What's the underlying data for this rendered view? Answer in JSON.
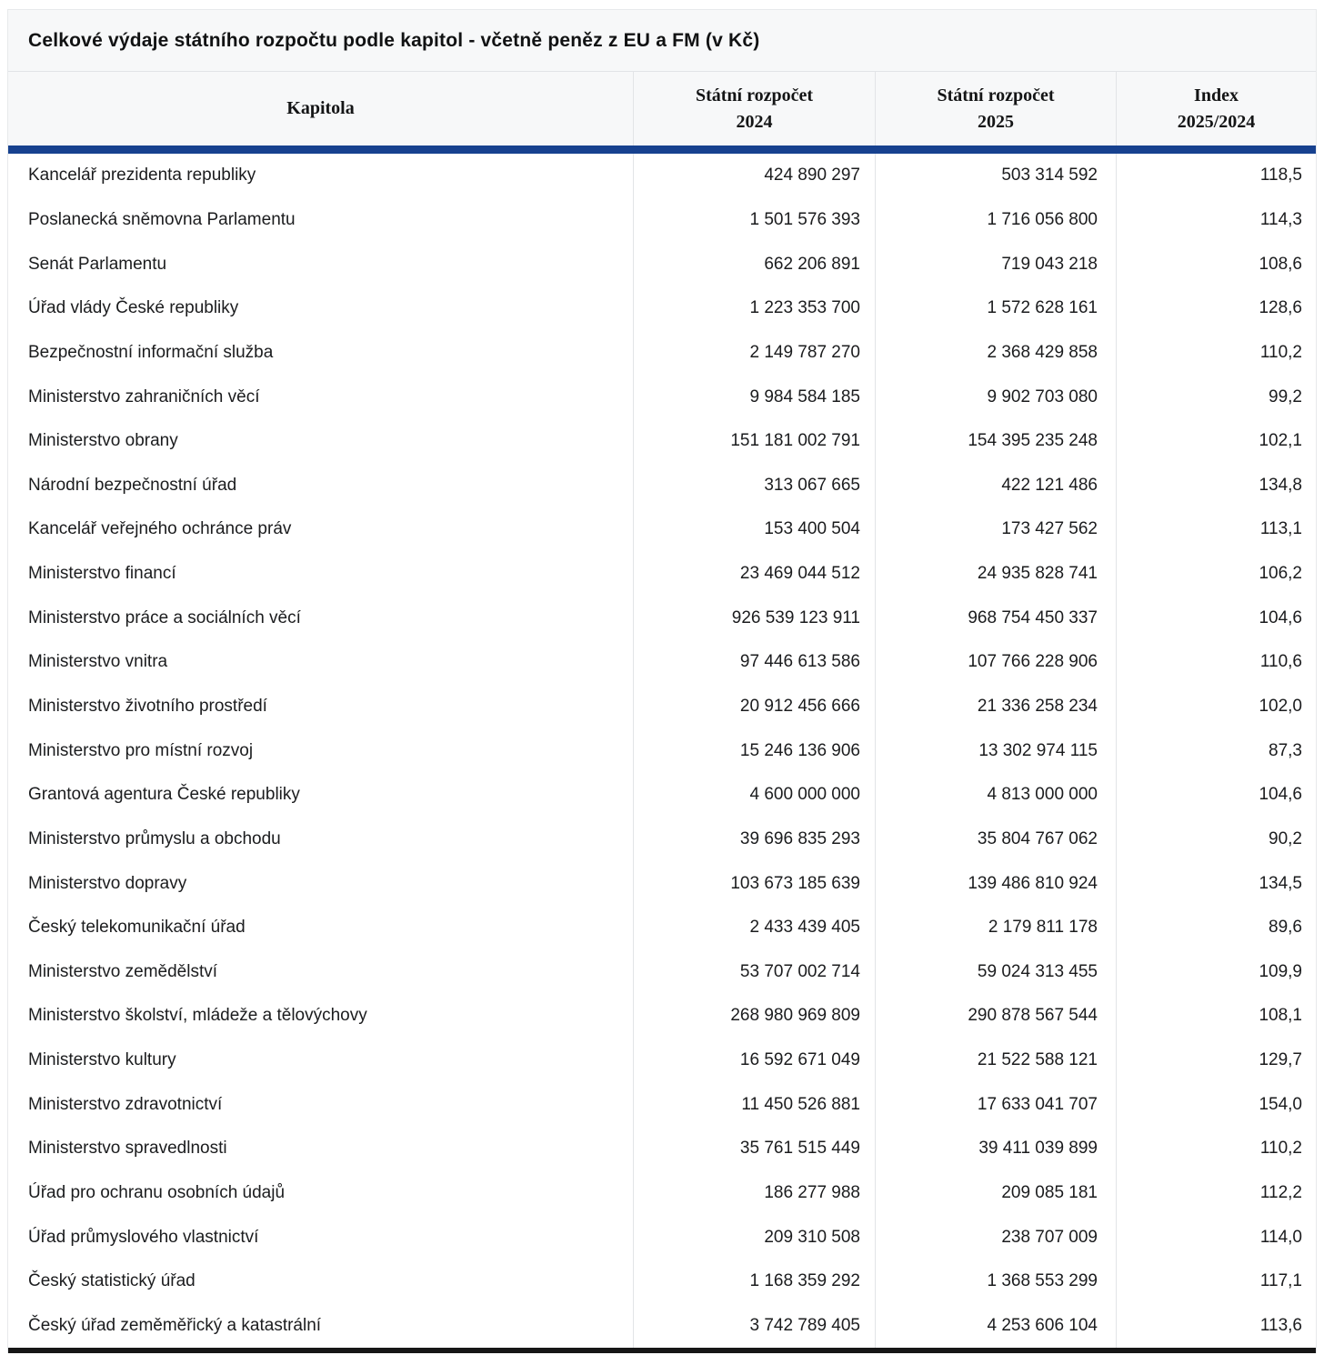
{
  "header": {
    "col_kapitola": "Kapitola",
    "col_2024_line1": "Státní rozpočet",
    "col_2024_line2": "2024",
    "col_2025_line1": "Státní rozpočet",
    "col_2025_line2": "2025",
    "col_index_line1": "Index",
    "col_index_line2": "2025/2024"
  },
  "colors": {
    "accent_bar": "#17418f",
    "header_bg": "#f7f8f9",
    "border": "#e2e4e7",
    "bottom_bar": "#161616"
  },
  "chart_data": {
    "type": "table",
    "title": "Celkové výdaje státního rozpočtu podle kapitol - včetně peněz z EU a FM (v Kč)",
    "columns": [
      "Kapitola",
      "Státní rozpočet 2024",
      "Státní rozpočet 2025",
      "Index 2025/2024"
    ],
    "rows": [
      [
        "Kancelář prezidenta republiky",
        "424 890 297",
        "503 314 592",
        "118,5"
      ],
      [
        "Poslanecká sněmovna Parlamentu",
        "1 501 576 393",
        "1 716 056 800",
        "114,3"
      ],
      [
        "Senát Parlamentu",
        "662 206 891",
        "719 043 218",
        "108,6"
      ],
      [
        "Úřad vlády České republiky",
        "1 223 353 700",
        "1 572 628 161",
        "128,6"
      ],
      [
        "Bezpečnostní informační služba",
        "2 149 787 270",
        "2 368 429 858",
        "110,2"
      ],
      [
        "Ministerstvo zahraničních věcí",
        "9 984 584 185",
        "9 902 703 080",
        "99,2"
      ],
      [
        "Ministerstvo obrany",
        "151 181 002 791",
        "154 395 235 248",
        "102,1"
      ],
      [
        "Národní bezpečnostní úřad",
        "313 067 665",
        "422 121 486",
        "134,8"
      ],
      [
        "Kancelář veřejného ochránce práv",
        "153 400 504",
        "173 427 562",
        "113,1"
      ],
      [
        "Ministerstvo financí",
        "23 469 044 512",
        "24 935 828 741",
        "106,2"
      ],
      [
        "Ministerstvo práce a sociálních věcí",
        "926 539 123 911",
        "968 754 450 337",
        "104,6"
      ],
      [
        "Ministerstvo vnitra",
        "97 446 613 586",
        "107 766 228 906",
        "110,6"
      ],
      [
        "Ministerstvo životního prostředí",
        "20 912 456 666",
        "21 336 258 234",
        "102,0"
      ],
      [
        "Ministerstvo pro místní rozvoj",
        "15 246 136 906",
        "13 302 974 115",
        "87,3"
      ],
      [
        "Grantová agentura České republiky",
        "4 600 000 000",
        "4 813 000 000",
        "104,6"
      ],
      [
        "Ministerstvo průmyslu a obchodu",
        "39 696 835 293",
        "35 804 767 062",
        "90,2"
      ],
      [
        "Ministerstvo dopravy",
        "103 673 185 639",
        "139 486 810 924",
        "134,5"
      ],
      [
        "Český telekomunikační úřad",
        "2 433 439 405",
        "2 179 811 178",
        "89,6"
      ],
      [
        "Ministerstvo zemědělství",
        "53 707 002 714",
        "59 024 313 455",
        "109,9"
      ],
      [
        "Ministerstvo školství, mládeže a tělovýchovy",
        "268 980 969 809",
        "290 878 567 544",
        "108,1"
      ],
      [
        "Ministerstvo kultury",
        "16 592 671 049",
        "21 522 588 121",
        "129,7"
      ],
      [
        "Ministerstvo zdravotnictví",
        "11 450 526 881",
        "17 633 041 707",
        "154,0"
      ],
      [
        "Ministerstvo spravedlnosti",
        "35 761 515 449",
        "39 411 039 899",
        "110,2"
      ],
      [
        "Úřad pro ochranu osobních údajů",
        "186 277 988",
        "209 085 181",
        "112,2"
      ],
      [
        "Úřad průmyslového vlastnictví",
        "209 310 508",
        "238 707 009",
        "114,0"
      ],
      [
        "Český statistický úřad",
        "1 168 359 292",
        "1 368 553 299",
        "117,1"
      ],
      [
        "Český úřad zeměměřický a katastrální",
        "3 742 789 405",
        "4 253 606 104",
        "113,6"
      ]
    ]
  }
}
